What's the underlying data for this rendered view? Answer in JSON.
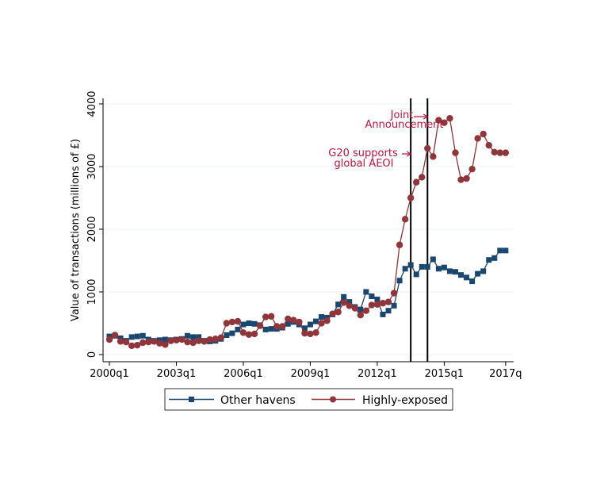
{
  "chart_data": {
    "type": "line",
    "title": "",
    "xlabel": "",
    "ylabel": "Value of transactions (millions of £)",
    "ylim": [
      0,
      4000
    ],
    "yticks": [
      0,
      1000,
      2000,
      3000,
      4000
    ],
    "ytick_labels": [
      "0",
      "1000",
      "2000",
      "3000",
      "4000"
    ],
    "x_start": "2000q1",
    "x_end": "2017q4",
    "xticks": [
      0,
      12,
      24,
      36,
      48,
      60,
      71
    ],
    "xtick_labels": [
      "2000q1",
      "2003q1",
      "2006q1",
      "2009q1",
      "2012q1",
      "2015q1",
      "2017q"
    ],
    "grid": true,
    "legend_position": "bottom",
    "series": [
      {
        "name": "Other havens",
        "color": "#1a476f",
        "marker": "square",
        "values": [
          290,
          300,
          260,
          220,
          280,
          290,
          300,
          240,
          220,
          230,
          240,
          230,
          240,
          250,
          300,
          280,
          280,
          220,
          210,
          220,
          250,
          310,
          340,
          400,
          480,
          500,
          490,
          470,
          400,
          410,
          410,
          430,
          490,
          520,
          480,
          420,
          480,
          530,
          600,
          590,
          640,
          800,
          920,
          840,
          760,
          720,
          1000,
          930,
          880,
          640,
          700,
          780,
          1180,
          1370,
          1430,
          1280,
          1400,
          1400,
          1520,
          1370,
          1390,
          1330,
          1320,
          1270,
          1230,
          1170,
          1290,
          1330,
          1510,
          1540,
          1660,
          1660
        ]
      },
      {
        "name": "Highly-exposed",
        "color": "#90353b",
        "marker": "circle",
        "values": [
          240,
          310,
          210,
          200,
          140,
          150,
          190,
          200,
          210,
          180,
          160,
          220,
          230,
          240,
          200,
          190,
          220,
          210,
          240,
          250,
          270,
          500,
          520,
          530,
          350,
          320,
          330,
          460,
          600,
          610,
          450,
          450,
          570,
          550,
          520,
          340,
          330,
          350,
          500,
          540,
          650,
          680,
          830,
          780,
          740,
          630,
          700,
          790,
          800,
          820,
          840,
          980,
          1750,
          2160,
          2500,
          2750,
          2830,
          3290,
          3160,
          3740,
          3700,
          3770,
          3220,
          2790,
          2810,
          2960,
          3450,
          3520,
          3340,
          3230,
          3220,
          3220
        ]
      }
    ],
    "vlines": [
      {
        "x": "2013q3",
        "index": 54
      },
      {
        "x": "2014q2",
        "index": 57
      }
    ],
    "annotations": [
      {
        "lines": [
          "Joint",
          "Announcement"
        ],
        "arrow_to": "2014q2"
      },
      {
        "lines": [
          "G20 supports",
          "global AEOI"
        ],
        "arrow_to": "2013q3"
      }
    ]
  }
}
